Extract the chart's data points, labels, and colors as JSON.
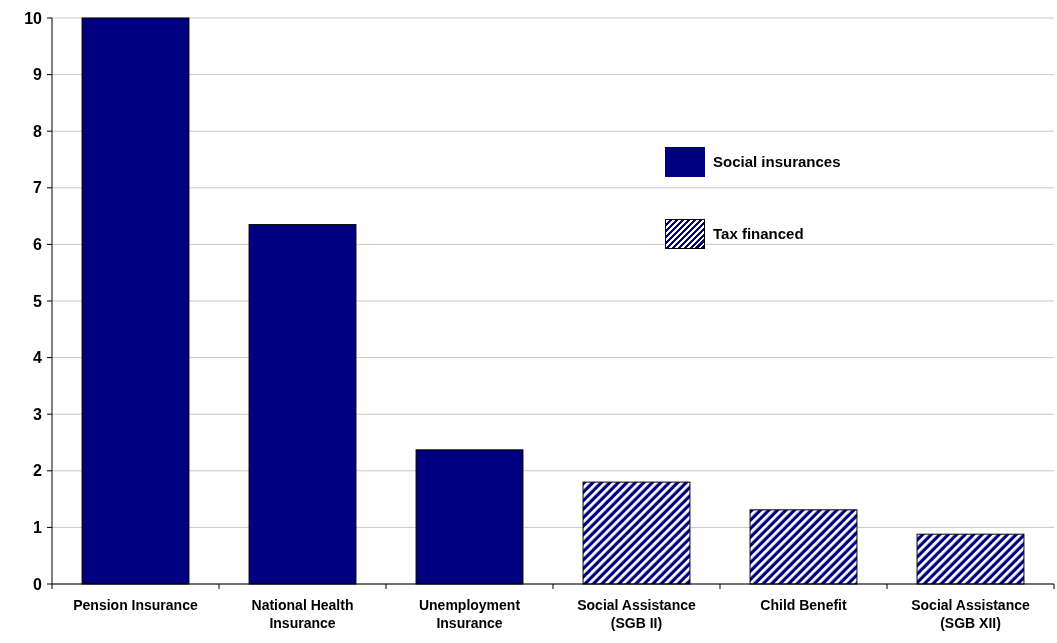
{
  "chart_data": {
    "type": "bar",
    "categories": [
      "Pension Insurance",
      "National Health Insurance",
      "Unemployment Insurance",
      "Social Assistance (SGB II)",
      "Child Benefit",
      "Social Assistance (SGB XII)"
    ],
    "series": [
      {
        "name": "Social insurances",
        "color": "#000080",
        "values": [
          10,
          6.35,
          2.37,
          null,
          null,
          null
        ]
      },
      {
        "name": "Tax financed",
        "color": "#000080",
        "values": [
          null,
          null,
          null,
          1.8,
          1.31,
          0.88
        ]
      }
    ],
    "ylim": [
      0,
      10
    ],
    "yticks": [
      0,
      1,
      2,
      3,
      4,
      5,
      6,
      7,
      8,
      9,
      10
    ],
    "grid": "y",
    "legend": "top right"
  }
}
